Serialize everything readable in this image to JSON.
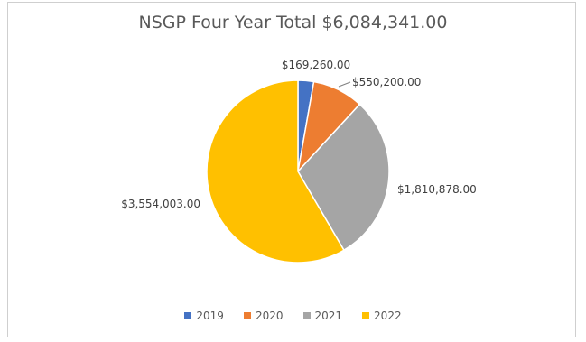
{
  "chart_data": {
    "type": "pie",
    "title": "NSGP Four Year Total $6,084,341.00",
    "categories": [
      "2019",
      "2020",
      "2021",
      "2022"
    ],
    "values": [
      169260,
      550200,
      1810878,
      3554003
    ],
    "labels": [
      "$169,260.00",
      "$550,200.00",
      "$1,810,878.00",
      "$3,554,003.00"
    ],
    "colors": [
      "#4472C4",
      "#ED7D31",
      "#A5A5A5",
      "#FFC000"
    ],
    "legend_position": "bottom",
    "start_angle": "12 o'clock",
    "direction": "clockwise"
  }
}
